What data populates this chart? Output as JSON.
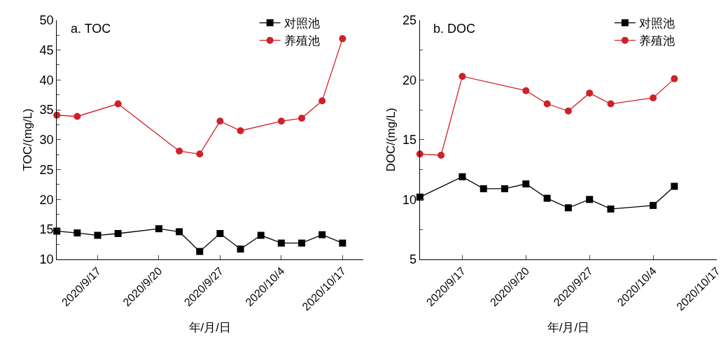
{
  "chart_data": [
    {
      "type": "line",
      "title": "a. TOC",
      "xlabel": "年/月/日",
      "ylabel": "TOC/(mg/L)",
      "categories": [
        null,
        null,
        "2020/9/17",
        null,
        null,
        "2020/9/20",
        null,
        null,
        "2020/9/27",
        null,
        null,
        "2020/10/4",
        null,
        null,
        "2020/10/17",
        null
      ],
      "ylim": [
        10,
        50
      ],
      "yticks": [
        10,
        15,
        20,
        25,
        30,
        35,
        40,
        45,
        50
      ],
      "legend": "top right",
      "series": [
        {
          "name": "对照池",
          "color": "#000000",
          "marker": "square",
          "values": [
            14.7,
            14.4,
            14.0,
            14.3,
            null,
            15.1,
            14.6,
            11.3,
            14.3,
            11.7,
            14.0,
            12.7,
            12.7,
            14.1,
            12.7,
            null
          ]
        },
        {
          "name": "养殖池",
          "color": "#d0202a",
          "marker": "circle",
          "values": [
            34.1,
            33.9,
            null,
            36.0,
            null,
            null,
            28.1,
            27.6,
            33.1,
            31.5,
            null,
            33.1,
            33.6,
            36.5,
            46.9,
            null
          ]
        }
      ]
    },
    {
      "type": "line",
      "title": "b. DOC",
      "xlabel": "年/月/日",
      "ylabel": "DOC/(mg/L)",
      "categories": [
        null,
        null,
        "2020/9/17",
        null,
        null,
        "2020/9/20",
        null,
        null,
        "2020/9/27",
        null,
        null,
        "2020/10/4",
        null,
        null,
        "2020/10/17"
      ],
      "ylim": [
        5,
        25
      ],
      "yticks": [
        5,
        10,
        15,
        20,
        25
      ],
      "legend": "top right",
      "series": [
        {
          "name": "对照池",
          "color": "#000000",
          "marker": "square",
          "values": [
            10.2,
            null,
            11.9,
            10.9,
            10.9,
            11.3,
            10.1,
            9.3,
            10.0,
            9.2,
            null,
            9.5,
            11.1,
            null,
            null
          ]
        },
        {
          "name": "养殖池",
          "color": "#d0202a",
          "marker": "circle",
          "values": [
            13.8,
            13.7,
            20.3,
            null,
            null,
            19.1,
            18.0,
            17.4,
            18.9,
            18.0,
            null,
            18.5,
            20.1,
            null,
            null
          ]
        }
      ]
    }
  ]
}
